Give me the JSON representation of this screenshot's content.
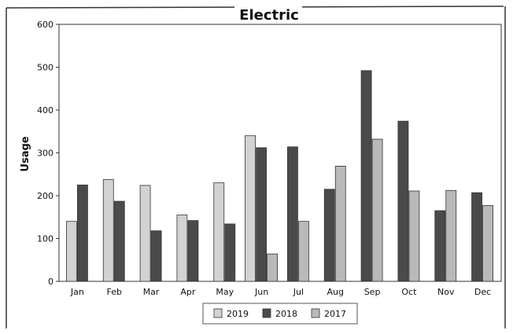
{
  "chart_data": {
    "type": "bar",
    "title": "Electric",
    "xlabel": "",
    "ylabel": "Usage",
    "ylim": [
      0,
      600
    ],
    "yticks": [
      0,
      100,
      200,
      300,
      400,
      500,
      600
    ],
    "grid": false,
    "legend_position": "bottom",
    "categories": [
      "Jan",
      "Feb",
      "Mar",
      "Apr",
      "May",
      "Jun",
      "Jul",
      "Aug",
      "Sep",
      "Oct",
      "Nov",
      "Dec"
    ],
    "series": [
      {
        "name": "2019",
        "color": "#d2d2d2",
        "values": [
          140,
          238,
          224,
          155,
          230,
          340,
          null,
          null,
          null,
          null,
          null,
          null
        ]
      },
      {
        "name": "2018",
        "color": "#4a4a4a",
        "values": [
          225,
          187,
          118,
          142,
          134,
          312,
          314,
          215,
          492,
          374,
          165,
          207
        ]
      },
      {
        "name": "2017",
        "color": "#b9b9b9",
        "values": [
          null,
          null,
          null,
          null,
          null,
          64,
          140,
          269,
          332,
          211,
          212,
          177
        ]
      }
    ]
  }
}
